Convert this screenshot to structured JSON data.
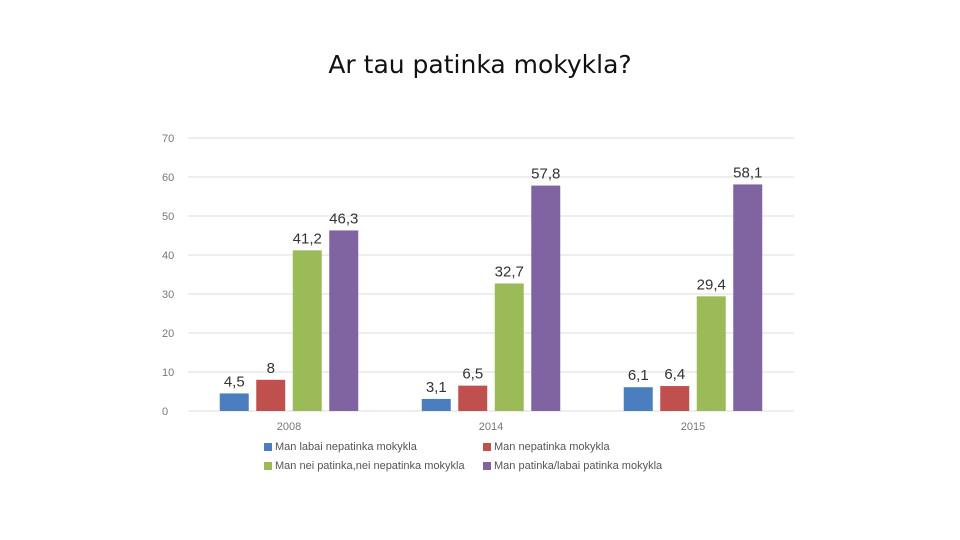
{
  "title": "Ar tau patinka mokykla?",
  "chart_data": {
    "type": "bar",
    "categories": [
      "2008",
      "2014",
      "2015"
    ],
    "ylim": [
      0,
      70
    ],
    "yticks": [
      0,
      10,
      20,
      30,
      40,
      50,
      60,
      70
    ],
    "grid": true,
    "legend_position": "bottom",
    "series": [
      {
        "name": "Man labai nepatinka mokykla",
        "color": "#4a7ebf",
        "values": [
          4.5,
          3.1,
          6.1
        ],
        "labels": [
          "4,5",
          "3,1",
          "6,1"
        ]
      },
      {
        "name": "Man nepatinka mokykla",
        "color": "#c0504d",
        "values": [
          8,
          6.5,
          6.4
        ],
        "labels": [
          "8",
          "6,5",
          "6,4"
        ]
      },
      {
        "name": "Man nei patinka,nei nepatinka mokykla",
        "color": "#9bbb59",
        "values": [
          41.2,
          32.7,
          29.4
        ],
        "labels": [
          "41,2",
          "32,7",
          "29,4"
        ]
      },
      {
        "name": "Man patinka/labai patinka mokykla",
        "color": "#8064a2",
        "values": [
          46.3,
          57.8,
          58.1
        ],
        "labels": [
          "46,3",
          "57,8",
          "58,1"
        ]
      }
    ]
  }
}
